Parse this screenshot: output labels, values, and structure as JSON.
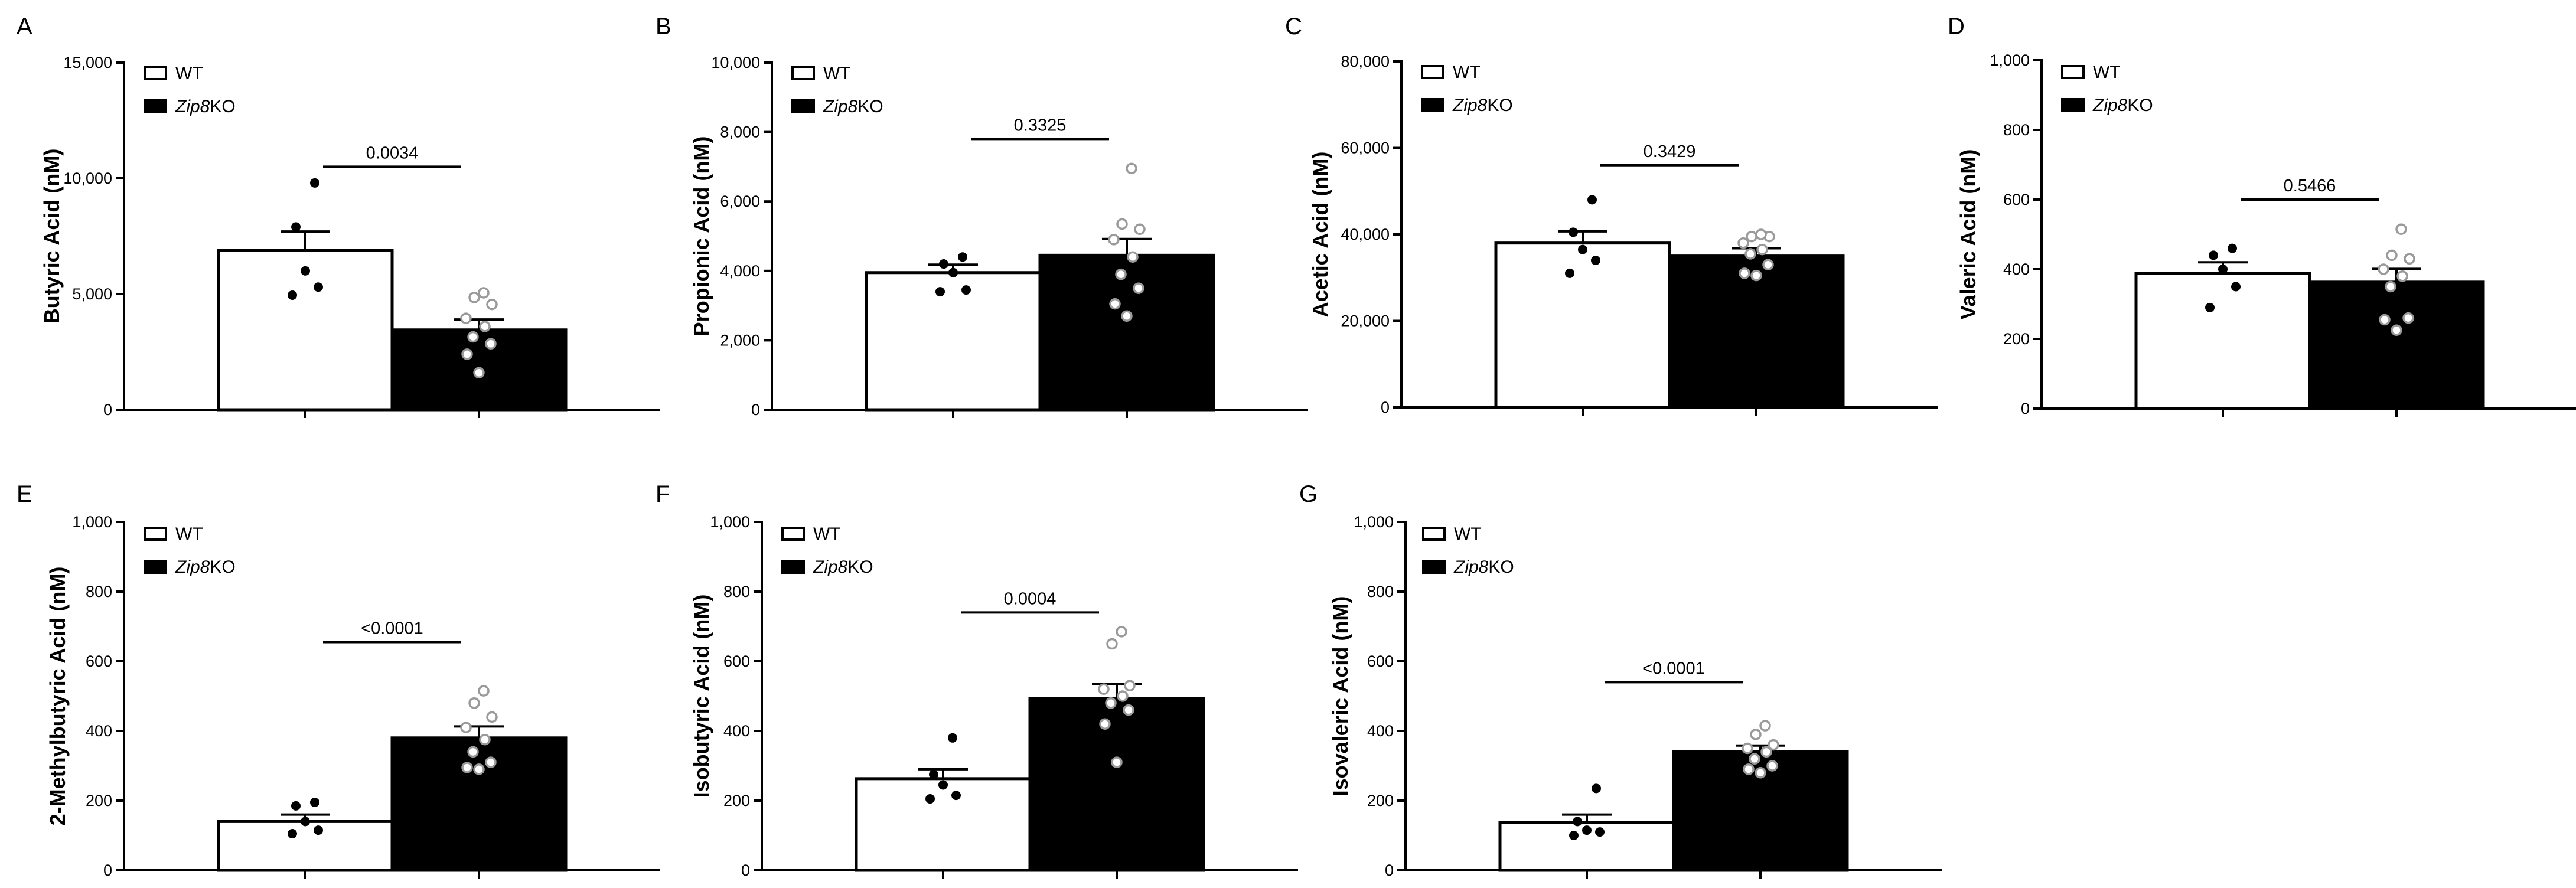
{
  "legend_labels": {
    "wt": "WT",
    "ko_italic": "Zip8",
    "ko_suffix": "KO"
  },
  "chart_data": [
    {
      "type": "bar",
      "panel": "A",
      "ylabel": "Butyric Acid  (nM)",
      "categories": [
        "WT",
        "Zip8KO"
      ],
      "values": [
        6900,
        3450
      ],
      "sem": [
        800,
        450
      ],
      "points": [
        [
          4950,
          5300,
          6000,
          7900,
          9800
        ],
        [
          1600,
          2400,
          2850,
          3150,
          3600,
          3950,
          4550,
          4850,
          5050
        ]
      ],
      "ylim": [
        0,
        15000
      ],
      "yticks": [
        0,
        5000,
        10000,
        15000
      ],
      "yticklabels": [
        "0",
        "5,000",
        "10,000",
        "15,000"
      ],
      "pvalue": "0.0034",
      "sig_bar_y": 10500
    },
    {
      "type": "bar",
      "panel": "B",
      "ylabel": "Propionic Acid  (nM)",
      "categories": [
        "WT",
        "Zip8KO"
      ],
      "values": [
        3950,
        4450
      ],
      "sem": [
        230,
        470
      ],
      "points": [
        [
          3400,
          3450,
          3950,
          4200,
          4400
        ],
        [
          2700,
          3050,
          3500,
          3900,
          4400,
          4900,
          5200,
          5350,
          6950
        ]
      ],
      "ylim": [
        0,
        10000
      ],
      "yticks": [
        0,
        2000,
        4000,
        6000,
        8000,
        10000
      ],
      "yticklabels": [
        "0",
        "2,000",
        "4,000",
        "6,000",
        "8,000",
        "10,000"
      ],
      "pvalue": "0.3325",
      "sig_bar_y": 7800
    },
    {
      "type": "bar",
      "panel": "C",
      "ylabel": "Acetic Acid  (nM)",
      "categories": [
        "WT",
        "Zip8KO"
      ],
      "values": [
        38000,
        35000
      ],
      "sem": [
        2700,
        1800
      ],
      "points": [
        [
          31000,
          34000,
          36500,
          40500,
          48000
        ],
        [
          30500,
          31000,
          33000,
          35500,
          36500,
          38000,
          39500,
          39500,
          40000
        ]
      ],
      "ylim": [
        0,
        80000
      ],
      "yticks": [
        0,
        20000,
        40000,
        60000,
        80000
      ],
      "yticklabels": [
        "0",
        "20,000",
        "40,000",
        "60,000",
        "80,000"
      ],
      "pvalue": "0.3429",
      "sig_bar_y": 56000
    },
    {
      "type": "bar",
      "panel": "D",
      "ylabel": "Valeric Acid  (nM)",
      "categories": [
        "WT",
        "Zip8KO"
      ],
      "values": [
        388,
        363
      ],
      "sem": [
        32,
        38
      ],
      "points": [
        [
          290,
          350,
          400,
          440,
          460
        ],
        [
          225,
          255,
          260,
          350,
          380,
          400,
          430,
          440,
          515
        ]
      ],
      "ylim": [
        0,
        1000
      ],
      "yticks": [
        0,
        200,
        400,
        600,
        800,
        1000
      ],
      "yticklabels": [
        "0",
        "200",
        "400",
        "600",
        "800",
        "1,000"
      ],
      "pvalue": "0.5466",
      "sig_bar_y": 600
    },
    {
      "type": "bar",
      "panel": "E",
      "ylabel": "2-Methylbutyric Acid  (nM)",
      "categories": [
        "WT",
        "Zip8KO"
      ],
      "values": [
        140,
        380
      ],
      "sem": [
        20,
        33
      ],
      "points": [
        [
          105,
          115,
          140,
          185,
          195
        ],
        [
          290,
          295,
          310,
          340,
          375,
          410,
          440,
          480,
          515
        ]
      ],
      "ylim": [
        0,
        1000
      ],
      "yticks": [
        0,
        200,
        400,
        600,
        800,
        1000
      ],
      "yticklabels": [
        "0",
        "200",
        "400",
        "600",
        "800",
        "1,000"
      ],
      "pvalue": "<0.0001",
      "sig_bar_y": 655
    },
    {
      "type": "bar",
      "panel": "F",
      "ylabel": "Isobutyric Acid  (nM)",
      "categories": [
        "WT",
        "Zip8KO"
      ],
      "values": [
        263,
        493
      ],
      "sem": [
        27,
        42
      ],
      "points": [
        [
          205,
          215,
          245,
          275,
          380
        ],
        [
          310,
          420,
          460,
          480,
          500,
          520,
          530,
          650,
          685
        ]
      ],
      "ylim": [
        0,
        1000
      ],
      "yticks": [
        0,
        200,
        400,
        600,
        800,
        1000
      ],
      "yticklabels": [
        "0",
        "200",
        "400",
        "600",
        "800",
        "1,000"
      ],
      "pvalue": "0.0004",
      "sig_bar_y": 740
    },
    {
      "type": "bar",
      "panel": "G",
      "ylabel": "Isovaleric Acid  (nM)",
      "categories": [
        "WT",
        "Zip8KO"
      ],
      "values": [
        138,
        340
      ],
      "sem": [
        22,
        18
      ],
      "points": [
        [
          100,
          110,
          115,
          140,
          235
        ],
        [
          280,
          290,
          300,
          320,
          340,
          350,
          360,
          390,
          415
        ]
      ],
      "ylim": [
        0,
        1000
      ],
      "yticks": [
        0,
        200,
        400,
        600,
        800,
        1000
      ],
      "yticklabels": [
        "0",
        "200",
        "400",
        "600",
        "800",
        "1,000"
      ],
      "pvalue": "<0.0001",
      "sig_bar_y": 540
    }
  ]
}
